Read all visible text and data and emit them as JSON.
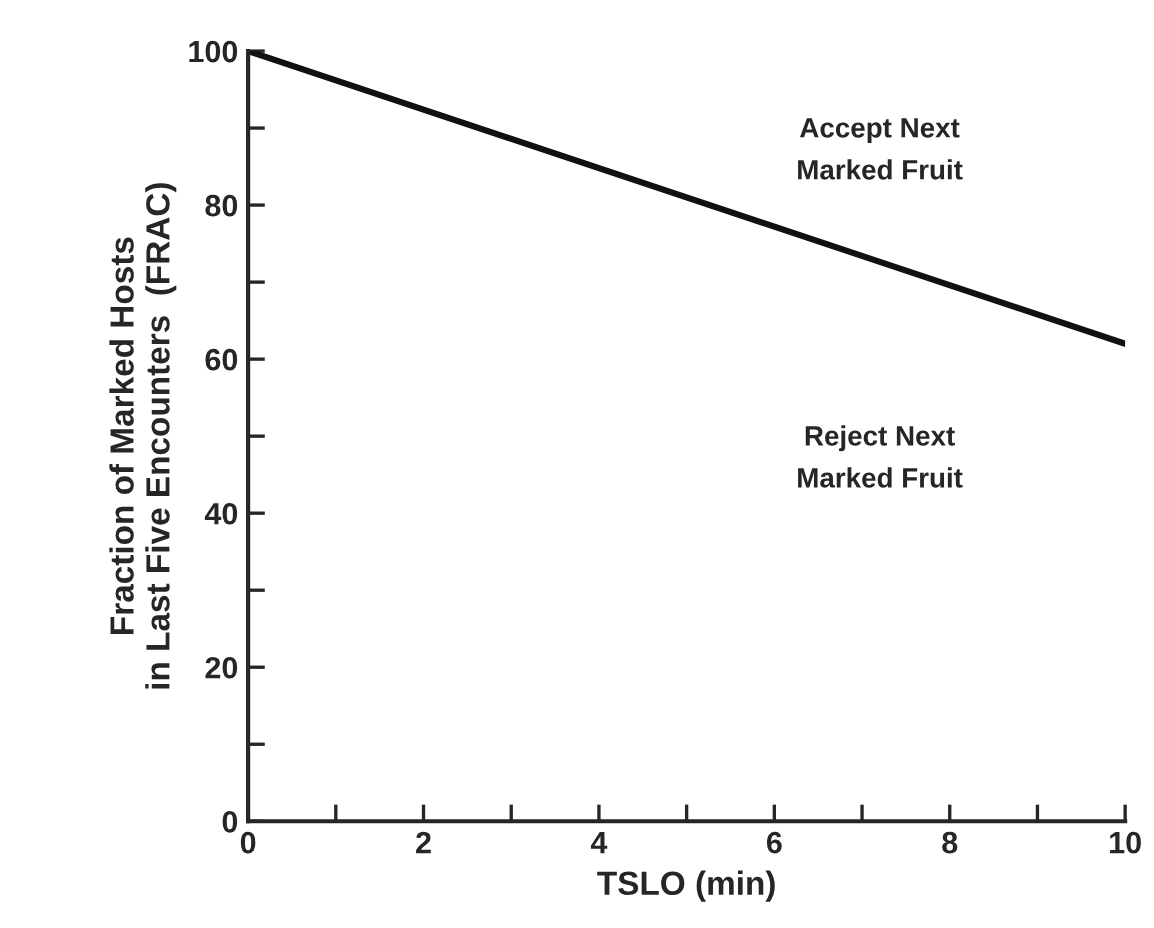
{
  "chart_data": {
    "type": "line",
    "xlabel": "TSLO (min)",
    "ylabel": "Fraction of Marked Hosts\nin Last Five Encounters  (FRAC)",
    "x": [
      0,
      10
    ],
    "series": [
      {
        "color": "#111111",
        "values": [
          100,
          62
        ]
      }
    ],
    "xlim": [
      0,
      10
    ],
    "ylim": [
      0,
      100
    ],
    "xticks": [
      0,
      {
        "value": 1,
        "label": null
      },
      2,
      {
        "value": 3,
        "label": null
      },
      4,
      {
        "value": 5,
        "label": null
      },
      6,
      {
        "value": 7,
        "label": null
      },
      8,
      {
        "value": 9,
        "label": null
      },
      10
    ],
    "yticks": [
      0,
      {
        "value": 10,
        "label": null
      },
      20,
      {
        "value": 30,
        "label": null
      },
      40,
      {
        "value": 50,
        "label": null
      },
      60,
      {
        "value": 70,
        "label": null
      },
      80,
      {
        "value": 90,
        "label": null
      },
      100
    ],
    "annotations": [
      "Accept Next\nMarked Fruit",
      "Reject Next\nMarked Fruit"
    ],
    "grid": false,
    "legend": false,
    "marker": "none",
    "line_style": "solid"
  }
}
